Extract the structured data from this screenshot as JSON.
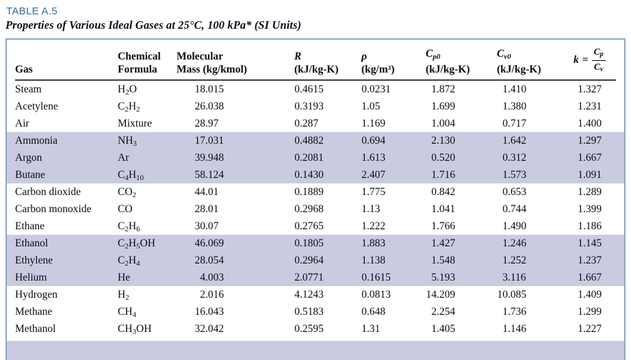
{
  "table_label": "TABLE A.5",
  "table_title": "Properties of Various Ideal Gases at 25°C, 100 kPa* (SI Units)",
  "columns": {
    "gas": "Gas",
    "formula_l1": "Chemical",
    "formula_l2": "Formula",
    "molmass_l1": "Molecular",
    "molmass_l2": "Mass (kg/kmol)",
    "r_l1": "R",
    "r_l2": "(kJ/kg-K)",
    "rho_l1": "ρ",
    "rho_l2": "(kg/m³)",
    "cp0_main": "C",
    "cp0_sub": "p0",
    "cp0_l2": "(kJ/kg-K)",
    "cv0_main": "C",
    "cv0_sub": "v0",
    "cv0_l2": "(kJ/kg-K)",
    "k_lhs": "k",
    "k_eq": "=",
    "k_num_main": "C",
    "k_num_sub": "p",
    "k_den_main": "C",
    "k_den_sub": "v"
  },
  "rows": [
    {
      "gas": "Steam",
      "formula": "H2O",
      "molmass": "18.015",
      "r": "0.4615",
      "rho": "0.0231",
      "cp0": "1.872",
      "cv0": "1.410",
      "k": "1.327",
      "shaded": false
    },
    {
      "gas": "Acetylene",
      "formula": "C2H2",
      "molmass": "26.038",
      "r": "0.3193",
      "rho": "1.05",
      "cp0": "1.699",
      "cv0": "1.380",
      "k": "1.231",
      "shaded": false
    },
    {
      "gas": "Air",
      "formula": "Mixture",
      "molmass": "28.97",
      "r": "0.287",
      "rho": "1.169",
      "cp0": "1.004",
      "cv0": "0.717",
      "k": "1.400",
      "shaded": false
    },
    {
      "gas": "Ammonia",
      "formula": "NH3",
      "molmass": "17.031",
      "r": "0.4882",
      "rho": "0.694",
      "cp0": "2.130",
      "cv0": "1.642",
      "k": "1.297",
      "shaded": true
    },
    {
      "gas": "Argon",
      "formula": "Ar",
      "molmass": "39.948",
      "r": "0.2081",
      "rho": "1.613",
      "cp0": "0.520",
      "cv0": "0.312",
      "k": "1.667",
      "shaded": true
    },
    {
      "gas": "Butane",
      "formula": "C4H10",
      "molmass": "58.124",
      "r": "0.1430",
      "rho": "2.407",
      "cp0": "1.716",
      "cv0": "1.573",
      "k": "1.091",
      "shaded": true
    },
    {
      "gas": "Carbon dioxide",
      "formula": "CO2",
      "molmass": "44.01",
      "r": "0.1889",
      "rho": "1.775",
      "cp0": "0.842",
      "cv0": "0.653",
      "k": "1.289",
      "shaded": false
    },
    {
      "gas": "Carbon monoxide",
      "formula": "CO",
      "molmass": "28.01",
      "r": "0.2968",
      "rho": "1.13",
      "cp0": "1.041",
      "cv0": "0.744",
      "k": "1.399",
      "shaded": false
    },
    {
      "gas": "Ethane",
      "formula": "C2H6",
      "molmass": "30.07",
      "r": "0.2765",
      "rho": "1.222",
      "cp0": "1.766",
      "cv0": "1.490",
      "k": "1.186",
      "shaded": false
    },
    {
      "gas": "Ethanol",
      "formula": "C2H5OH",
      "molmass": "46.069",
      "r": "0.1805",
      "rho": "1.883",
      "cp0": "1.427",
      "cv0": "1.246",
      "k": "1.145",
      "shaded": true
    },
    {
      "gas": "Ethylene",
      "formula": "C2H4",
      "molmass": "28.054",
      "r": "0.2964",
      "rho": "1.138",
      "cp0": "1.548",
      "cv0": "1.252",
      "k": "1.237",
      "shaded": true
    },
    {
      "gas": "Helium",
      "formula": "He",
      "molmass": "4.003",
      "r": "2.0771",
      "rho": "0.1615",
      "cp0": "5.193",
      "cv0": "3.116",
      "k": "1.667",
      "shaded": true
    },
    {
      "gas": "Hydrogen",
      "formula": "H2",
      "molmass": "2.016",
      "r": "4.1243",
      "rho": "0.0813",
      "cp0": "14.209",
      "cv0": "10.085",
      "k": "1.409",
      "shaded": false
    },
    {
      "gas": "Methane",
      "formula": "CH4",
      "molmass": "16.043",
      "r": "0.5183",
      "rho": "0.648",
      "cp0": "2.254",
      "cv0": "1.736",
      "k": "1.299",
      "shaded": false
    },
    {
      "gas": "Methanol",
      "formula": "CH3OH",
      "molmass": "32.042",
      "r": "0.2595",
      "rho": "1.31",
      "cp0": "1.405",
      "cv0": "1.146",
      "k": "1.227",
      "shaded": false
    }
  ],
  "colors": {
    "accent_blue": "#2f6d9f",
    "band_lavender": "#c9cbe0",
    "frame_blue": "#8ba7c6",
    "rule_dark": "#3d3d3d"
  }
}
